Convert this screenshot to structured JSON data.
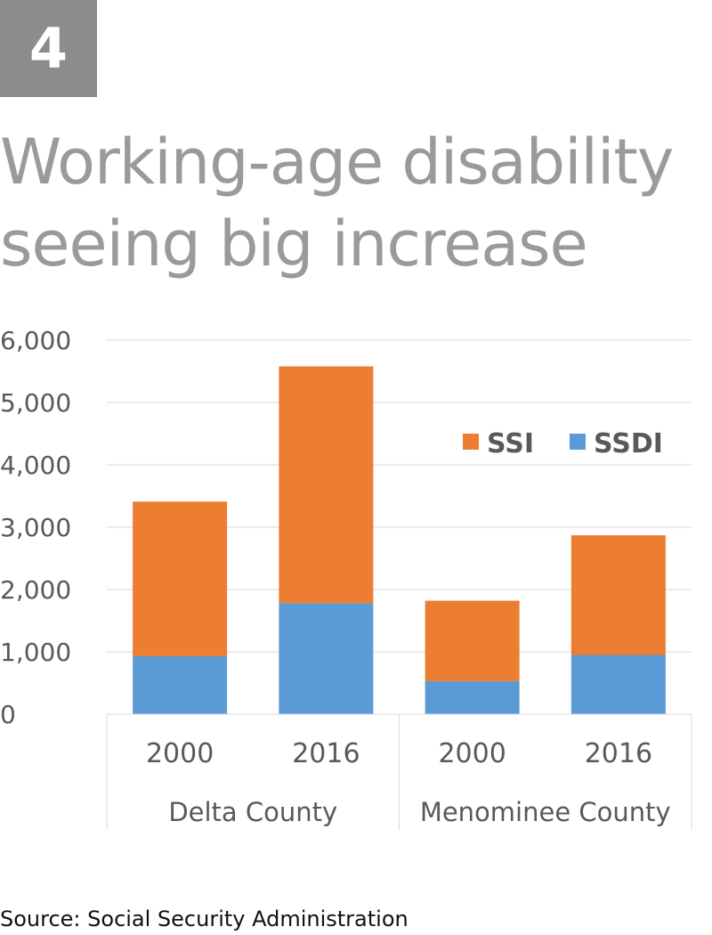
{
  "badge": {
    "number": "4"
  },
  "headline": {
    "line1": "Working-age disability",
    "line2": "seeing big increase"
  },
  "source": "Source: Social Security Administration",
  "colors": {
    "ssi": "#ed7d31",
    "ssdi": "#5b9bd5",
    "gridline": "#d9d9d9",
    "axis_text": "#595959",
    "badge_bg": "#8c8c8c",
    "headline": "#9a9a9a"
  },
  "chart_data": {
    "type": "bar",
    "stacked": true,
    "title": "",
    "xlabel": "",
    "ylabel": "",
    "ylim": [
      0,
      6000
    ],
    "yticks": [
      0,
      1000,
      2000,
      3000,
      4000,
      5000,
      6000
    ],
    "ytick_labels": [
      "0",
      "1,000",
      "2,000",
      "3,000",
      "4,000",
      "5,000",
      "6,000"
    ],
    "grid": true,
    "legend_position": "top-right",
    "groups": [
      {
        "label": "Delta County",
        "categories": [
          "2000",
          "2016"
        ]
      },
      {
        "label": "Menominee County",
        "categories": [
          "2000",
          "2016"
        ]
      }
    ],
    "categories": [
      "2000",
      "2016",
      "2000",
      "2016"
    ],
    "series": [
      {
        "name": "SSDI",
        "color": "#5b9bd5",
        "values": [
          930,
          1780,
          530,
          950
        ]
      },
      {
        "name": "SSI",
        "color": "#ed7d31",
        "values": [
          2480,
          3800,
          1290,
          1920
        ]
      }
    ],
    "legend_order": [
      "SSI",
      "SSDI"
    ]
  }
}
